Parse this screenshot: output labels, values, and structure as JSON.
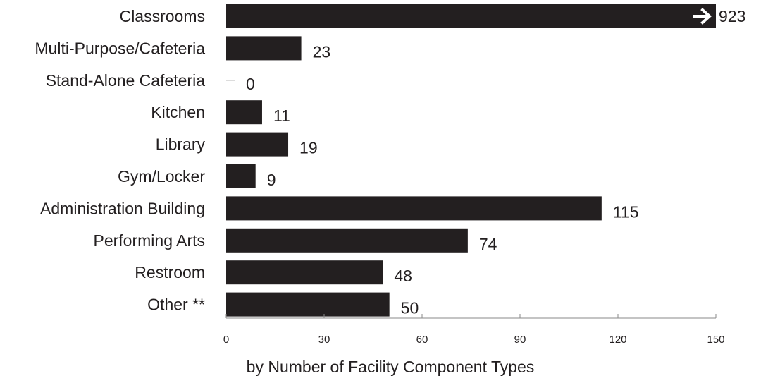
{
  "chart_data": {
    "type": "bar",
    "orientation": "horizontal",
    "categories": [
      "Classrooms",
      "Multi-Purpose/Cafeteria",
      "Stand-Alone Cafeteria",
      "Kitchen",
      "Library",
      "Gym/Locker",
      "Administration Building",
      "Performing Arts",
      "Restroom",
      "Other **"
    ],
    "values": [
      923,
      23,
      0,
      11,
      19,
      9,
      115,
      74,
      48,
      50
    ],
    "value_labels": [
      "923",
      "23",
      "0",
      "11",
      "19",
      "9",
      "115",
      "74",
      "48",
      "50"
    ],
    "truncated": [
      true,
      false,
      false,
      false,
      false,
      false,
      false,
      false,
      false,
      false
    ],
    "xlabel": "by Number of Facility Component Types",
    "xlim": [
      0,
      150
    ],
    "xticks": [
      0,
      30,
      60,
      90,
      120,
      150
    ],
    "grid": false,
    "bar_color": "#231f20",
    "truncation_marker_icon": "arrow-right-icon"
  }
}
